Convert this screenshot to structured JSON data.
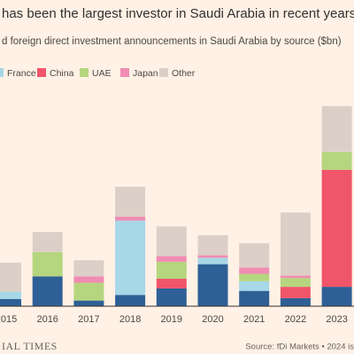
{
  "chart_data": {
    "type": "stacked_bar",
    "title": "has been the largest investor in Saudi Arabia in recent years",
    "subtitle": "d foreign direct investment announcements in Saudi Arabia by source ($bn)",
    "categories": [
      "2015",
      "2016",
      "2017",
      "2018",
      "2019",
      "2020",
      "2021",
      "2022",
      "2023"
    ],
    "series": [
      {
        "color": "#2e6096",
        "values": [
          0.9,
          3.7,
          0.7,
          1.4,
          2.2,
          5.2,
          1.9,
          1.0,
          2.4
        ]
      },
      {
        "name": "France",
        "color": "#a6d8e8",
        "values": [
          0.9,
          0,
          0,
          9.2,
          0,
          0.8,
          1.2,
          0,
          0
        ]
      },
      {
        "name": "China",
        "color": "#f0556a",
        "values": [
          0,
          0,
          0,
          0,
          1.2,
          0,
          0,
          1.4,
          14.5
        ]
      },
      {
        "name": "UAE",
        "color": "#b5d67e",
        "values": [
          0,
          3.0,
          2.2,
          0,
          2.1,
          0,
          0.9,
          1.1,
          2.2
        ]
      },
      {
        "name": "Japan",
        "color": "#f08cb4",
        "values": [
          0,
          0,
          0.8,
          0.5,
          0.7,
          0.3,
          0.8,
          0.3,
          0
        ]
      },
      {
        "name": "Other",
        "color": "#dccfc7",
        "values": [
          3.6,
          2.5,
          2.0,
          3.7,
          3.7,
          2.5,
          3.0,
          7.8,
          5.7
        ]
      }
    ],
    "ylim": [
      0,
      25
    ],
    "source": "Source: fDi Markets • 2024 is",
    "brand": "IAL TIMES"
  }
}
